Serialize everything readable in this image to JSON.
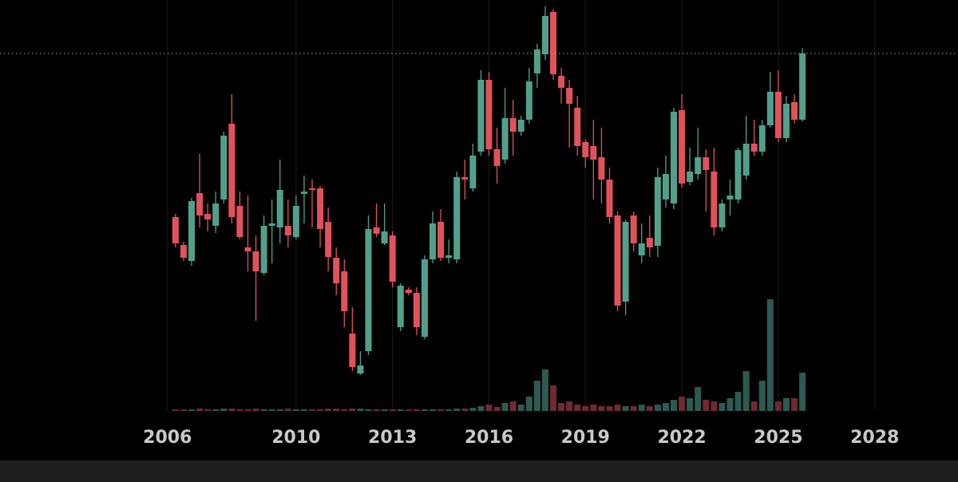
{
  "chart_data": {
    "type": "candlestick",
    "x": [
      2006.25,
      2006.5,
      2006.75,
      2007,
      2007.25,
      2007.5,
      2007.75,
      2008,
      2008.25,
      2008.5,
      2008.75,
      2009,
      2009.25,
      2009.5,
      2009.75,
      2010,
      2010.25,
      2010.5,
      2010.75,
      2011,
      2011.25,
      2011.5,
      2011.75,
      2012,
      2012.25,
      2012.5,
      2012.75,
      2013,
      2013.25,
      2013.5,
      2013.75,
      2014,
      2014.25,
      2014.5,
      2014.75,
      2015,
      2015.25,
      2015.5,
      2015.75,
      2016,
      2016.25,
      2016.5,
      2016.75,
      2017,
      2017.25,
      2017.5,
      2017.75,
      2018,
      2018.25,
      2018.5,
      2018.75,
      2019,
      2019.25,
      2019.5,
      2019.75,
      2020,
      2020.25,
      2020.5,
      2020.75,
      2021,
      2021.25,
      2021.5,
      2021.75,
      2022,
      2022.25,
      2022.5,
      2022.75,
      2023,
      2023.25,
      2023.5,
      2023.75,
      2024,
      2024.25,
      2024.5,
      2024.75,
      2025,
      2025.25,
      2025.5,
      2025.75
    ],
    "open": [
      248,
      213,
      193,
      278,
      252,
      237,
      270,
      365,
      262,
      210,
      205,
      178,
      237,
      235,
      237,
      223,
      277,
      284,
      284,
      242,
      197,
      180,
      102,
      52,
      80,
      235,
      215,
      225,
      110,
      157,
      153,
      98,
      195,
      242,
      197,
      195,
      298,
      284,
      330,
      420,
      333,
      320,
      372,
      355,
      370,
      428,
      452,
      505,
      425,
      410,
      385,
      342,
      337,
      323,
      295,
      250,
      142,
      250,
      200,
      222,
      212,
      270,
      265,
      382,
      292,
      302,
      323,
      305,
      235,
      270,
      270,
      300,
      340,
      330,
      363,
      405,
      347,
      392,
      370
    ],
    "high": [
      252,
      217,
      272,
      327,
      265,
      280,
      355,
      402,
      280,
      275,
      225,
      250,
      270,
      320,
      270,
      275,
      300,
      295,
      287,
      260,
      210,
      195,
      135,
      80,
      250,
      265,
      265,
      230,
      165,
      160,
      160,
      200,
      255,
      258,
      220,
      305,
      320,
      340,
      432,
      430,
      360,
      410,
      395,
      375,
      435,
      465,
      512,
      508,
      435,
      420,
      400,
      345,
      370,
      360,
      310,
      255,
      245,
      255,
      240,
      250,
      310,
      325,
      385,
      402,
      335,
      360,
      333,
      335,
      270,
      295,
      335,
      375,
      370,
      370,
      430,
      432,
      400,
      402,
      460
    ],
    "low": [
      210,
      193,
      187,
      235,
      230,
      228,
      265,
      240,
      220,
      180,
      118,
      175,
      190,
      215,
      210,
      220,
      240,
      235,
      210,
      180,
      150,
      110,
      55,
      50,
      75,
      223,
      213,
      160,
      105,
      150,
      100,
      95,
      190,
      193,
      190,
      190,
      270,
      280,
      325,
      325,
      290,
      315,
      325,
      350,
      365,
      410,
      445,
      420,
      390,
      335,
      325,
      310,
      270,
      265,
      240,
      130,
      125,
      205,
      190,
      198,
      198,
      260,
      258,
      285,
      288,
      295,
      255,
      225,
      230,
      250,
      265,
      295,
      325,
      325,
      360,
      342,
      342,
      365,
      368
    ],
    "close": [
      215,
      197,
      268,
      250,
      245,
      265,
      350,
      248,
      223,
      205,
      180,
      237,
      240,
      282,
      225,
      262,
      280,
      282,
      233,
      198,
      165,
      130,
      60,
      62,
      233,
      227,
      230,
      167,
      162,
      153,
      110,
      195,
      240,
      197,
      200,
      298,
      295,
      325,
      420,
      333,
      312,
      372,
      355,
      370,
      418,
      458,
      500,
      427,
      410,
      390,
      337,
      323,
      320,
      295,
      248,
      137,
      242,
      215,
      215,
      210,
      298,
      302,
      380,
      290,
      305,
      323,
      307,
      235,
      265,
      275,
      332,
      340,
      330,
      363,
      405,
      347,
      390,
      370,
      453
    ],
    "volume": [
      2,
      2,
      2,
      3,
      2,
      2,
      3,
      3,
      2,
      2,
      3,
      2,
      2,
      2,
      3,
      2,
      2,
      2,
      2,
      3,
      3,
      2,
      3,
      3,
      2,
      2,
      2,
      2,
      2,
      2,
      2,
      2,
      2,
      2,
      2,
      3,
      3,
      4,
      6,
      8,
      5,
      10,
      12,
      8,
      18,
      38,
      52,
      32,
      10,
      12,
      8,
      6,
      8,
      6,
      6,
      8,
      6,
      6,
      8,
      6,
      8,
      10,
      14,
      18,
      16,
      30,
      14,
      12,
      10,
      16,
      24,
      50,
      12,
      38,
      140,
      12,
      16,
      16,
      48
    ],
    "up_color": "#52a08b",
    "down_color": "#e2525c",
    "up_volume_color": "#2c5a52",
    "down_volume_color": "#6e2a30",
    "last_price_line_color": "#7fb79f",
    "xlim": [
      2000.79,
      2030.59
    ],
    "xticks": [
      2006,
      2010,
      2013,
      2016,
      2019,
      2022,
      2025,
      2028
    ],
    "ylim": [
      0,
      520
    ],
    "y2lim": [
      0,
      515
    ],
    "grid": true
  }
}
